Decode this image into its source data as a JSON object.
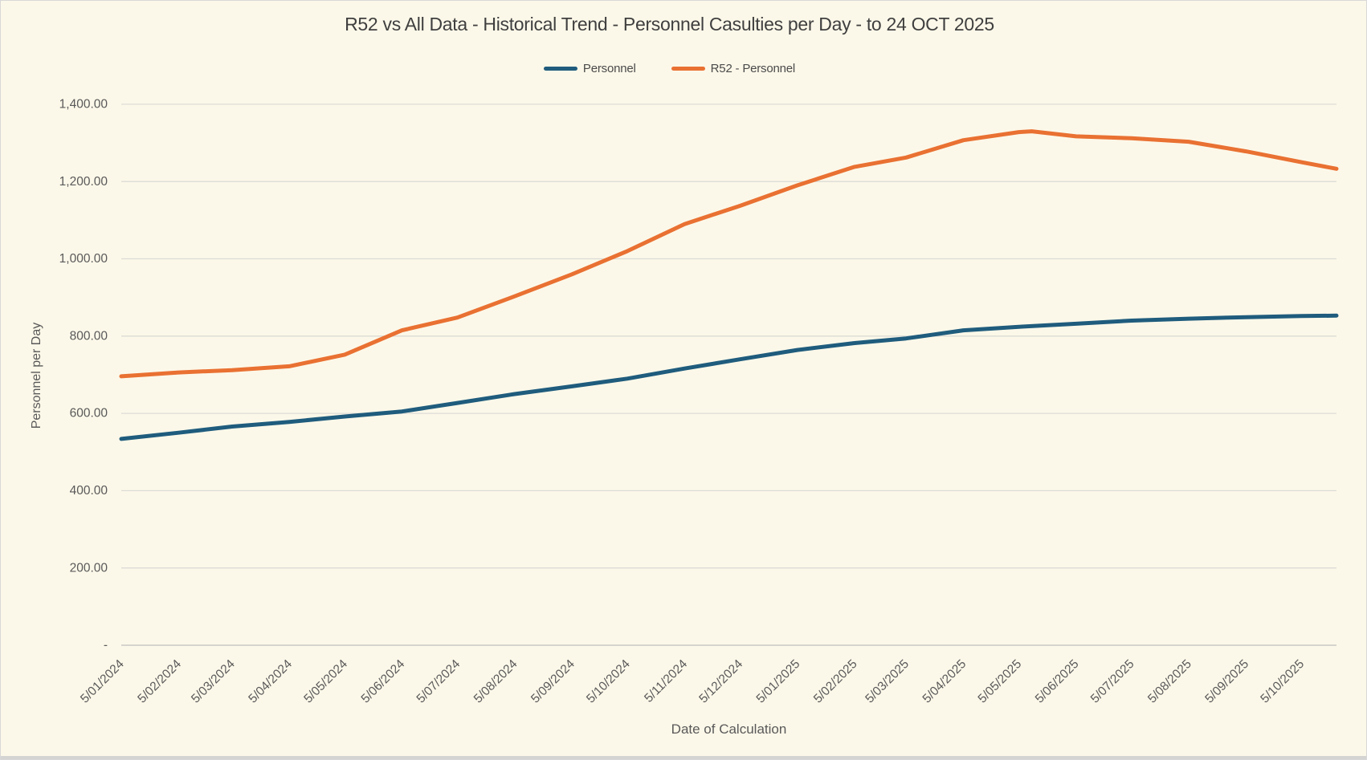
{
  "window": {
    "background_color": "#FCF8E9",
    "border_color": "#D8D8D8",
    "bottom_strip_color": "#D4D4D2"
  },
  "chart": {
    "title": "R52 vs All Data - Historical Trend - Personnel Casulties per Day - to 24 OCT 2025",
    "x_axis_title": "Date of Calculation",
    "y_axis_title": "Personnel per Day",
    "title_color": "#3F3F3F",
    "label_color": "#595959",
    "gridline_color": "#DBDBD6",
    "axis_line_color": "#C8C8C4"
  },
  "legend": {
    "items": [
      {
        "label": "Personnel",
        "color": "#1F5C7D"
      },
      {
        "label": "R52 - Personnel",
        "color": "#E97132"
      }
    ]
  },
  "chart_data": {
    "type": "line",
    "title": "R52 vs All Data - Historical Trend - Personnel Casulties per Day - to 24 OCT 2025",
    "xlabel": "Date of Calculation",
    "ylabel": "Personnel per Day",
    "grid": "horizontal-only",
    "legend_position": "top-center",
    "ylim": [
      0,
      1400
    ],
    "y_ticks": [
      {
        "value": 1400,
        "label": "1,400.00"
      },
      {
        "value": 1200,
        "label": "1,200.00"
      },
      {
        "value": 1000,
        "label": "1,000.00"
      },
      {
        "value": 800,
        "label": "800.00"
      },
      {
        "value": 600,
        "label": "600.00"
      },
      {
        "value": 400,
        "label": "400.00"
      },
      {
        "value": 200,
        "label": "200.00"
      },
      {
        "value": 0,
        "label": "-"
      }
    ],
    "categories": [
      "5/01/2024",
      "5/02/2024",
      "5/03/2024",
      "5/04/2024",
      "5/05/2024",
      "5/06/2024",
      "5/07/2024",
      "5/08/2024",
      "5/09/2024",
      "5/10/2024",
      "5/11/2024",
      "5/12/2024",
      "5/01/2025",
      "5/02/2025",
      "5/03/2025",
      "5/04/2025",
      "5/05/2025",
      "5/06/2025",
      "5/07/2025",
      "5/08/2025",
      "5/09/2025",
      "5/10/2025"
    ],
    "category_day_offsets": [
      0,
      31,
      60,
      91,
      121,
      152,
      182,
      213,
      244,
      274,
      305,
      335,
      366,
      397,
      425,
      456,
      486,
      517,
      547,
      578,
      609,
      639
    ],
    "axis_end_day_offset": 658,
    "axis_end_note": "line continues past last tick to 24 OCT 2025",
    "series": [
      {
        "name": "Personnel",
        "color": "#1F5C7D",
        "values": [
          534,
          550,
          566,
          578,
          592,
          605,
          627,
          650,
          670,
          690,
          716,
          740,
          764,
          782,
          794,
          815,
          824,
          832,
          840,
          845,
          849,
          852
        ],
        "end_value": 853,
        "extra_points": []
      },
      {
        "name": "R52 - Personnel",
        "color": "#E97132",
        "values": [
          696,
          706,
          712,
          722,
          752,
          815,
          848,
          903,
          960,
          1020,
          1090,
          1137,
          1190,
          1238,
          1262,
          1307,
          1328,
          1317,
          1312,
          1303,
          1278,
          1250
        ],
        "end_value": 1233,
        "extra_points": [
          [
            493,
            1330
          ]
        ]
      }
    ]
  }
}
